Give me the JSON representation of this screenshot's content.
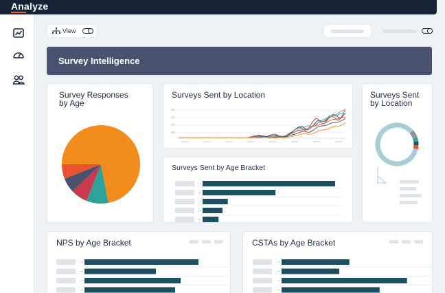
{
  "app": {
    "title": "Analyze"
  },
  "toolbar": {
    "view_label": "View"
  },
  "banner": {
    "title": "Survey Intelligence"
  },
  "cards": {
    "responses_by_age": {
      "title_line1": "Survey Responses",
      "title_line2": "by Age"
    },
    "sent_by_location_line": {
      "title": "Surveys Sent by Location"
    },
    "sent_by_location_donut": {
      "title_line1": "Surveys Sent",
      "title_line2": "by Location"
    },
    "sent_by_age_bracket": {
      "title": "Surveys Sent by Age Bracket"
    },
    "nps_by_age_bracket": {
      "title": "NPS by Age Bracket"
    },
    "cstas_by_age_bracket": {
      "title": "CSTAs by Age Bracket"
    }
  },
  "sidebar": {
    "icons": [
      "line-chart-icon",
      "gauge-icon",
      "users-icon"
    ]
  },
  "colors": {
    "orange": "#f28c1c",
    "teal": "#2fa39a",
    "crimson": "#c83a4e",
    "red_orange": "#e8532f",
    "slate": "#4a5270",
    "navy": "#152238",
    "bar": "#1d4f63",
    "light_blue": "#a7cdd7"
  },
  "chart_data": [
    {
      "type": "pie",
      "slices": [
        {
          "value": 72.0,
          "color": "#f28c1c"
        },
        {
          "value": 9.0,
          "color": "#2fa39a"
        },
        {
          "value": 7.0,
          "color": "#c83a4e"
        },
        {
          "value": 6.0,
          "color": "#4a5270"
        },
        {
          "value": 6.0,
          "color": "#e8532f"
        }
      ]
    },
    {
      "type": "bar",
      "id": "sent_by_age_bracket",
      "values": [
        100,
        55,
        19,
        15,
        12
      ]
    },
    {
      "type": "bar",
      "id": "nps_by_age_bracket",
      "values": [
        83,
        52,
        70,
        66
      ]
    },
    {
      "type": "bar",
      "id": "cstas_by_age_bracket",
      "values": [
        47,
        40,
        87,
        68
      ]
    },
    {
      "type": "pie",
      "id": "donut_location",
      "slices": [
        {
          "value": 58,
          "color": "#a7cdd7"
        },
        {
          "value": 6,
          "color": "#8c9399"
        },
        {
          "value": 3,
          "color": "#2fa39a"
        },
        {
          "value": 3,
          "color": "#1d4f63"
        },
        {
          "value": 3,
          "color": "#e8532f"
        },
        {
          "value": 27,
          "color": "#a7cdd7"
        }
      ]
    }
  ]
}
